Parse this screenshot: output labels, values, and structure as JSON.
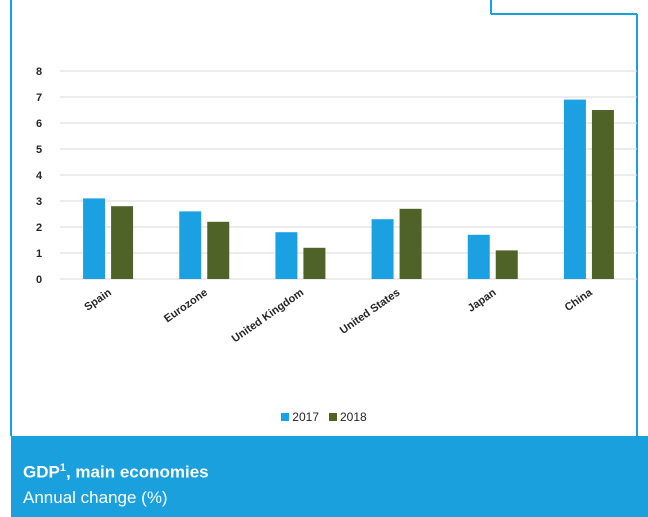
{
  "caption": {
    "title": "GDP",
    "title_superscript": "1",
    "title_suffix": ", main economies",
    "subtitle": "Annual change (%)"
  },
  "colors": {
    "frame": "#1aa0dd",
    "series_2017": "#1ba1e2",
    "series_2018": "#4f6228",
    "gridline": "#d9d9d9",
    "caption_bg": "#1aa0dd"
  },
  "chart_data": {
    "type": "bar",
    "title": "",
    "xlabel": "",
    "ylabel": "",
    "ylim": [
      0,
      8
    ],
    "yticks": [
      0,
      1,
      2,
      3,
      4,
      5,
      6,
      7,
      8
    ],
    "grid": true,
    "legend_position": "bottom",
    "categories": [
      "Spain",
      "Eurozone",
      "United Kingdom",
      "United States",
      "Japan",
      "China"
    ],
    "series": [
      {
        "name": "2017",
        "color": "#1ba1e2",
        "values": [
          3.1,
          2.6,
          1.8,
          2.3,
          1.7,
          6.9
        ]
      },
      {
        "name": "2018",
        "color": "#4f6228",
        "values": [
          2.8,
          2.2,
          1.2,
          2.7,
          1.1,
          6.5
        ]
      }
    ]
  }
}
